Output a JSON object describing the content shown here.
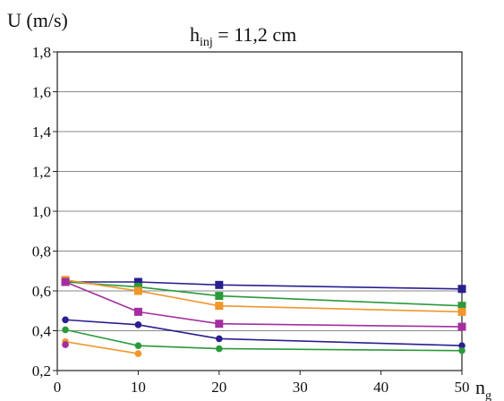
{
  "chart_data": {
    "type": "line",
    "title_main": "h",
    "title_sub": "inj",
    "title_rest": " = 11,2 cm",
    "ylabel": "U (m/s)",
    "xlabel_main": "n",
    "xlabel_sub": "g",
    "xlim": [
      0,
      50
    ],
    "ylim": [
      0.2,
      1.8
    ],
    "xticks": [
      "0",
      "10",
      "20",
      "30",
      "40",
      "50"
    ],
    "yticks": [
      "0,2",
      "0,4",
      "0,6",
      "0,8",
      "1,0",
      "1,2",
      "1,4",
      "1,6",
      "1,8"
    ],
    "grid": "horizontal",
    "series": [
      {
        "color": "#2a1f8f",
        "marker": "square",
        "x": [
          1,
          10,
          20,
          50
        ],
        "y": [
          0.645,
          0.645,
          0.63,
          0.61
        ]
      },
      {
        "color": "#2a9a3a",
        "marker": "square",
        "x": [
          1,
          10,
          20,
          50
        ],
        "y": [
          0.645,
          0.62,
          0.575,
          0.525
        ]
      },
      {
        "color": "#f0962a",
        "marker": "square",
        "x": [
          1,
          10,
          20,
          50
        ],
        "y": [
          0.655,
          0.6,
          0.525,
          0.495
        ]
      },
      {
        "color": "#a42ea0",
        "marker": "square",
        "x": [
          1,
          10,
          20,
          50
        ],
        "y": [
          0.645,
          0.495,
          0.435,
          0.42
        ]
      },
      {
        "color": "#2a1f8f",
        "marker": "circle",
        "x": [
          1,
          10,
          20,
          50
        ],
        "y": [
          0.455,
          0.43,
          0.36,
          0.325
        ]
      },
      {
        "color": "#2a9a3a",
        "marker": "circle",
        "x": [
          1,
          10,
          20,
          50
        ],
        "y": [
          0.405,
          0.325,
          0.31,
          0.3
        ]
      },
      {
        "color": "#f0962a",
        "marker": "circle",
        "x": [
          1,
          10
        ],
        "y": [
          0.345,
          0.285
        ]
      },
      {
        "color": "#a42ea0",
        "marker": "circle",
        "x": [
          1
        ],
        "y": [
          0.33
        ]
      }
    ]
  }
}
